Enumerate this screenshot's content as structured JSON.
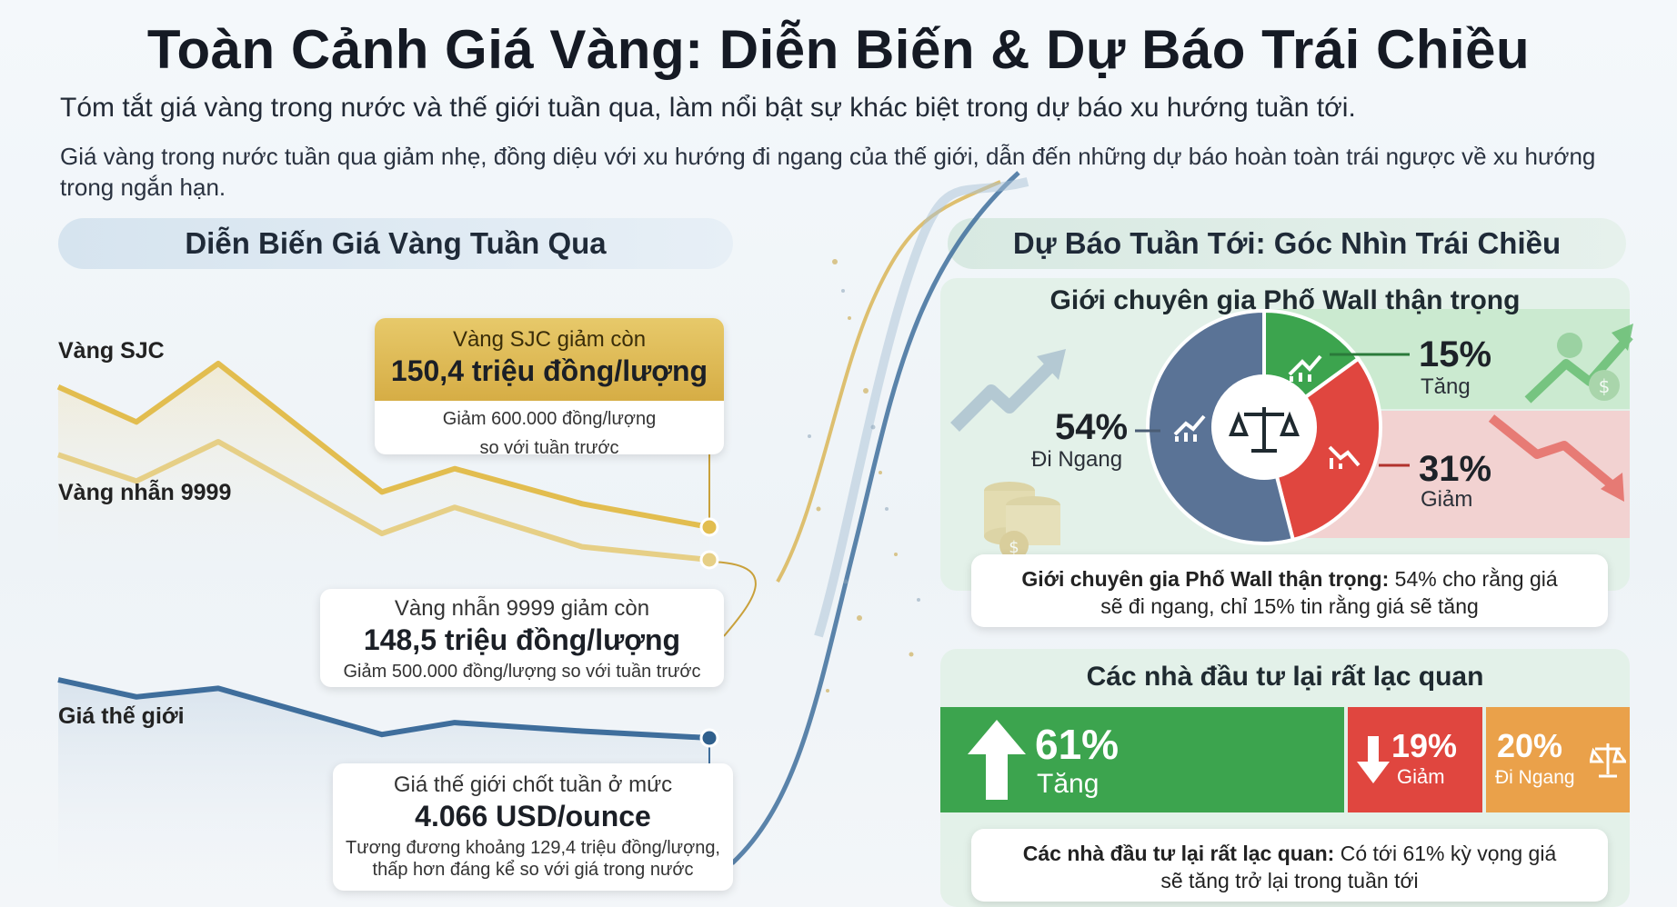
{
  "title": "Toàn Cảnh Giá Vàng: Diễn Biến & Dự Báo Trái Chiều",
  "subtitle": "Tóm tắt giá vàng trong nước và thế giới tuần qua, làm nổi bật sự khác biệt trong dự báo xu hướng tuần tới.",
  "summary": "Giá vàng trong nước tuần qua giảm nhẹ, đồng diệu với xu hướng đi ngang của thế giới, dẫn đến những dự báo hoàn toàn trái ngược về xu hướng trong ngắn hạn.",
  "left_section": {
    "heading": "Diễn Biến Giá Vàng Tuần Qua",
    "labels": {
      "sjc": "Vàng SJC",
      "nhan": "Vàng nhẫn 9999",
      "world": "Giá thế giới"
    },
    "callout_sjc": {
      "head": "Vàng SJC giảm còn",
      "value": "150,4 triệu đồng/lượng",
      "note1": "Giảm 600.000 đồng/lượng",
      "note2": "so với tuần trước"
    },
    "callout_nhan": {
      "head": "Vàng nhẫn 9999 giảm còn",
      "value": "148,5 triệu đồng/lượng",
      "note": "Giảm 500.000 đồng/lượng so với tuần trước"
    },
    "callout_world": {
      "head": "Giá thế giới chốt tuần ở mức",
      "value": "4.066 USD/ounce",
      "note1": "Tương đương khoảng 129,4 triệu đồng/lượng,",
      "note2": "thấp hơn đáng kể so với giá trong nước"
    }
  },
  "right_section": {
    "heading": "Dự Báo Tuần Tới: Góc Nhìn Trái Chiều",
    "experts": {
      "title": "Giới chuyên gia Phố Wall thận trọng",
      "up": {
        "pct": "15%",
        "label": "Tăng"
      },
      "flat": {
        "pct": "54%",
        "label": "Đi Ngang"
      },
      "down": {
        "pct": "31%",
        "label": "Giảm"
      },
      "summary_bold": "Giới chuyên gia Phố Wall thận trọng:",
      "summary_rest1": " 54% cho rằng giá",
      "summary_rest2": "sẽ đi ngang, chỉ 15% tin rằng giá sẽ tăng"
    },
    "investors": {
      "title": "Các nhà đầu tư lại rất lạc quan",
      "up": {
        "pct": "61%",
        "label": "Tăng"
      },
      "down": {
        "pct": "19%",
        "label": "Giảm"
      },
      "flat": {
        "pct": "20%",
        "label": "Đi Ngang"
      },
      "summary_bold": "Các nhà đầu tư lại rất lạc quan:",
      "summary_rest1": " Có tới 61% kỳ vọng giá",
      "summary_rest2": "sẽ tăng trở lại trong tuần tới"
    }
  },
  "colors": {
    "gold": "#e2bd4f",
    "gold_light": "#e6cf86",
    "world": "#3f6e9c",
    "up": "#3ca44e",
    "down": "#e0463f",
    "flat": "#5a7396",
    "side": "#eaa14a"
  },
  "chart_data": [
    {
      "type": "line",
      "title": "Diễn Biến Giá Vàng Tuần Qua",
      "series": [
        {
          "name": "Vàng SJC",
          "values": [
            151.6,
            151.3,
            151.8,
            150.7,
            150.9,
            150.6,
            150.4
          ]
        },
        {
          "name": "Vàng nhẫn 9999",
          "values": [
            149.3,
            149.1,
            149.4,
            148.7,
            148.9,
            148.6,
            148.5
          ]
        },
        {
          "name": "Giá thế giới",
          "values": [
            4100,
            4090,
            4095,
            4068,
            4075,
            4070,
            4066
          ]
        }
      ]
    },
    {
      "type": "pie",
      "title": "Giới chuyên gia Phố Wall thận trọng",
      "categories": [
        "Đi Ngang",
        "Tăng",
        "Giảm"
      ],
      "values": [
        54,
        15,
        31
      ]
    },
    {
      "type": "bar",
      "title": "Các nhà đầu tư lại rất lạc quan",
      "categories": [
        "Tăng",
        "Giảm",
        "Đi Ngang"
      ],
      "values": [
        61,
        19,
        20
      ]
    }
  ]
}
